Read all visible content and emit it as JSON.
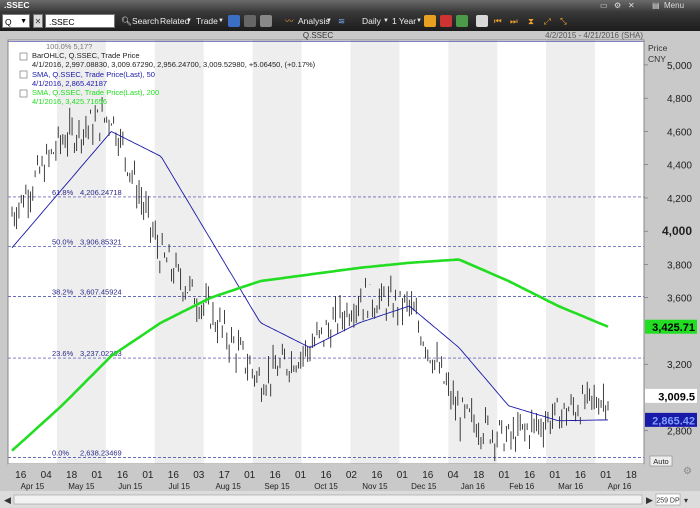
{
  "window": {
    "title": ".SSEC",
    "menu_label": "Menu"
  },
  "toolbar": {
    "q_value": "Q",
    "symbol_value": ".SSEC",
    "search_label": "Search",
    "related_label": "Related",
    "trade_label": "Trade",
    "analysis_label": "Analysis",
    "daily_label": "Daily",
    "range_label": "1 Year"
  },
  "chart_header": {
    "symbol": "Q.SSEC",
    "date_range": "4/2/2015 - 4/21/2016 (SHA)",
    "axis_title": "Price",
    "currency": "CNY"
  },
  "legend": {
    "title_line": "BarOHLC, Q.SSEC, Trade Price",
    "ohlc_line": "4/1/2016, 2,997.08830, 3,009.67290, 2,956.24700, 3,009.52980, +5.06450, (+0.17%)",
    "sma50_name": "SMA, Q.SSEC, Trade Price(Last), 50",
    "sma50_value": "4/1/2016, 2,865.42187",
    "sma200_name": "SMA, Q.SSEC, Trade Price(Last), 200",
    "sma200_value": "4/1/2016, 3,425.71656",
    "top_partial": "100.0%   5,17?"
  },
  "fib_levels": [
    {
      "pct": "61.8%",
      "value": "4,206.24718",
      "price": 4206.25
    },
    {
      "pct": "50.0%",
      "value": "3,906.85321",
      "price": 3906.85
    },
    {
      "pct": "38.2%",
      "value": "3,607.45924",
      "price": 3607.46
    },
    {
      "pct": "23.6%",
      "value": "3,237.02263",
      "price": 3237.02
    },
    {
      "pct": "0.0%",
      "value": "2,638.23469",
      "price": 2638.23
    }
  ],
  "price_ticks": [
    {
      "label": "5,000",
      "value": 5000
    },
    {
      "label": "4,800",
      "value": 4800
    },
    {
      "label": "4,600",
      "value": 4600
    },
    {
      "label": "4,400",
      "value": 4400
    },
    {
      "label": "4,200",
      "value": 4200
    },
    {
      "label": "4,000",
      "value": 4000
    },
    {
      "label": "3,800",
      "value": 3800
    },
    {
      "label": "3,600",
      "value": 3600
    },
    {
      "label": "3,200",
      "value": 3200
    },
    {
      "label": "2,800",
      "value": 2800
    }
  ],
  "markers": {
    "last_price": {
      "label": "3,009.5",
      "value": 3009.5,
      "color": "#000000"
    },
    "sma200": {
      "label": "3,425.71",
      "value": 3425.71,
      "color": "#22dd22"
    },
    "sma50": {
      "label": "2,865.42",
      "value": 2865.42,
      "color": "#1a1aa8"
    },
    "auto_label": "Auto"
  },
  "x_days": [
    "16",
    "04",
    "18",
    "01",
    "16",
    "01",
    "16",
    "03",
    "17",
    "01",
    "16",
    "01",
    "16",
    "02",
    "16",
    "01",
    "16",
    "04",
    "18",
    "01",
    "16",
    "01",
    "16",
    "01",
    "18"
  ],
  "x_months": [
    "Apr 15",
    "May 15",
    "Jun 15",
    "Jul 15",
    "Aug 15",
    "Sep 15",
    "Oct 15",
    "Nov 15",
    "Dec 15",
    "Jan 16",
    "Feb 16",
    "Mar 16",
    "Apr 16"
  ],
  "status": {
    "dp_label": "259 DP"
  },
  "chart_data": {
    "type": "bar",
    "title": "Q.SSEC",
    "ylabel": "Price CNY",
    "ylim": [
      2600,
      5150
    ],
    "series": [
      {
        "name": "BarOHLC, Q.SSEC, Trade Price",
        "x": [
          "2015-04",
          "2015-05",
          "2015-06",
          "2015-07",
          "2015-08",
          "2015-09",
          "2015-10",
          "2015-11",
          "2015-12",
          "2016-01",
          "2016-02",
          "2016-03",
          "2016-04"
        ],
        "values": [
          4100,
          4550,
          4700,
          3850,
          3500,
          3100,
          3300,
          3600,
          3550,
          2900,
          2750,
          2900,
          3009.5
        ]
      },
      {
        "name": "SMA, Q.SSEC, Trade Price(Last), 50",
        "values": [
          3900,
          4250,
          4600,
          4450,
          3950,
          3450,
          3300,
          3450,
          3550,
          3300,
          2950,
          2860,
          2865.42
        ]
      },
      {
        "name": "SMA, Q.SSEC, Trade Price(Last), 200",
        "values": [
          2680,
          2950,
          3250,
          3450,
          3600,
          3700,
          3740,
          3780,
          3810,
          3830,
          3700,
          3550,
          3425.71
        ]
      }
    ]
  }
}
